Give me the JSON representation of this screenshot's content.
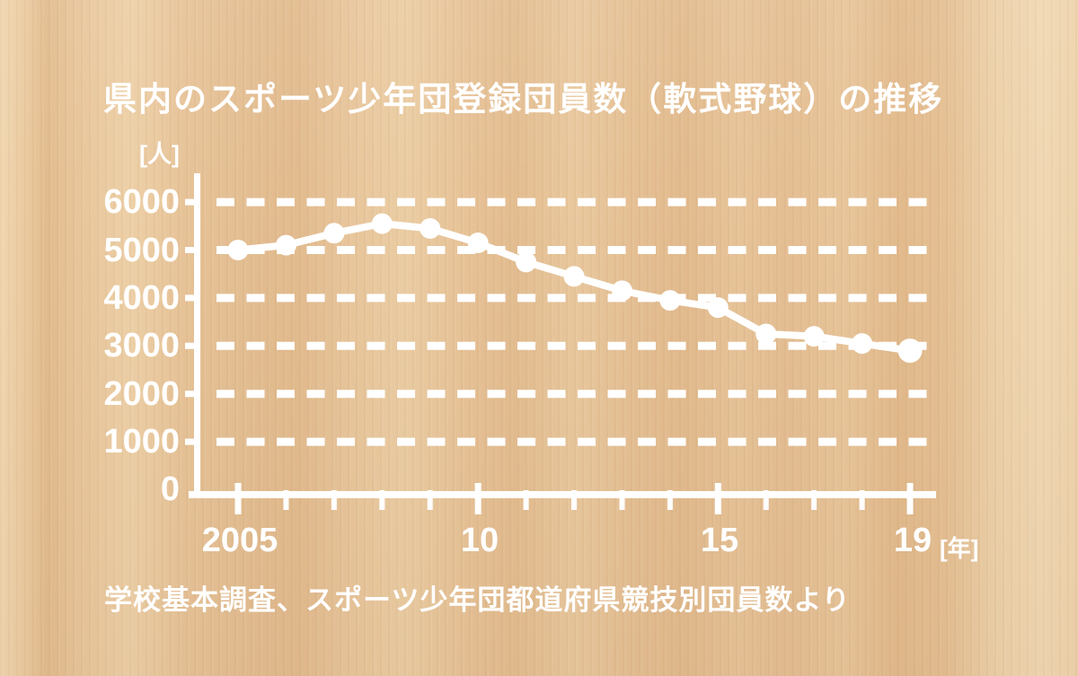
{
  "source_note": "学校基本調査、スポーツ少年団都道府県競技別団員数より",
  "colors": {
    "foreground": "#ffffff",
    "wood_light": "#f1d8b3",
    "wood_mid": "#e8c498",
    "wood_dark": "#e2ba8c"
  },
  "chart_data": {
    "type": "line",
    "title": "県内のスポーツ少年団登録団員数（軟式野球）の推移",
    "series_name": "登録団員数（軟式野球）",
    "x": [
      2005,
      2006,
      2007,
      2008,
      2009,
      2010,
      2011,
      2012,
      2013,
      2014,
      2015,
      2016,
      2017,
      2018,
      2019
    ],
    "values": [
      5000,
      5100,
      5350,
      5550,
      5450,
      5150,
      4750,
      4450,
      4150,
      3950,
      3800,
      3250,
      3200,
      3050,
      2900
    ],
    "ylabel": "[人]",
    "xlabel": "[年]",
    "ylim": [
      0,
      6000
    ],
    "yticks": [
      6000,
      5000,
      4000,
      3000,
      2000,
      1000,
      0
    ],
    "ytick_labels": [
      "6000",
      "5000",
      "4000",
      "3000",
      "2000",
      "1000",
      "0"
    ],
    "xticks": [
      2005,
      2010,
      2015,
      2019
    ],
    "xtick_labels": [
      "2005",
      "10",
      "15",
      "19"
    ],
    "grid": "horizontal-dashed",
    "legend": "none",
    "line_color": "#ffffff",
    "marker": "circle"
  }
}
